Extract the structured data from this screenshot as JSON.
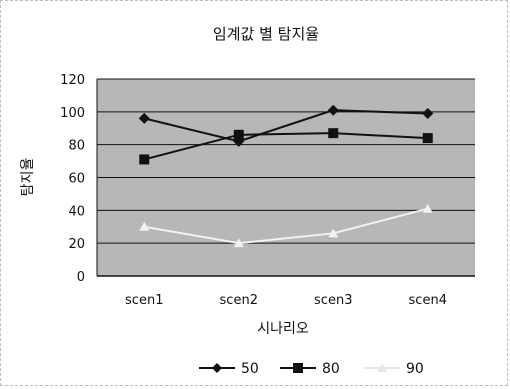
{
  "chart_data": {
    "type": "line",
    "title": "임계값 별 탐지율",
    "xlabel": "시나리오",
    "ylabel": "탐지율",
    "categories": [
      "scen1",
      "scen2",
      "scen3",
      "scen4"
    ],
    "ylim": [
      0,
      120
    ],
    "yticks": [
      0,
      20,
      40,
      60,
      80,
      100,
      120
    ],
    "grid": true,
    "legend_position": "bottom",
    "series": [
      {
        "name": "50",
        "values": [
          96,
          82,
          101,
          99
        ],
        "color": "#111111",
        "marker": "diamond"
      },
      {
        "name": "80",
        "values": [
          71,
          86,
          87,
          84
        ],
        "color": "#111111",
        "marker": "square"
      },
      {
        "name": "90",
        "values": [
          30,
          20,
          26,
          41
        ],
        "color": "#f2f2f2",
        "marker": "triangle"
      }
    ],
    "plot_background": "#b7b7b7",
    "grid_color": "#111111"
  }
}
